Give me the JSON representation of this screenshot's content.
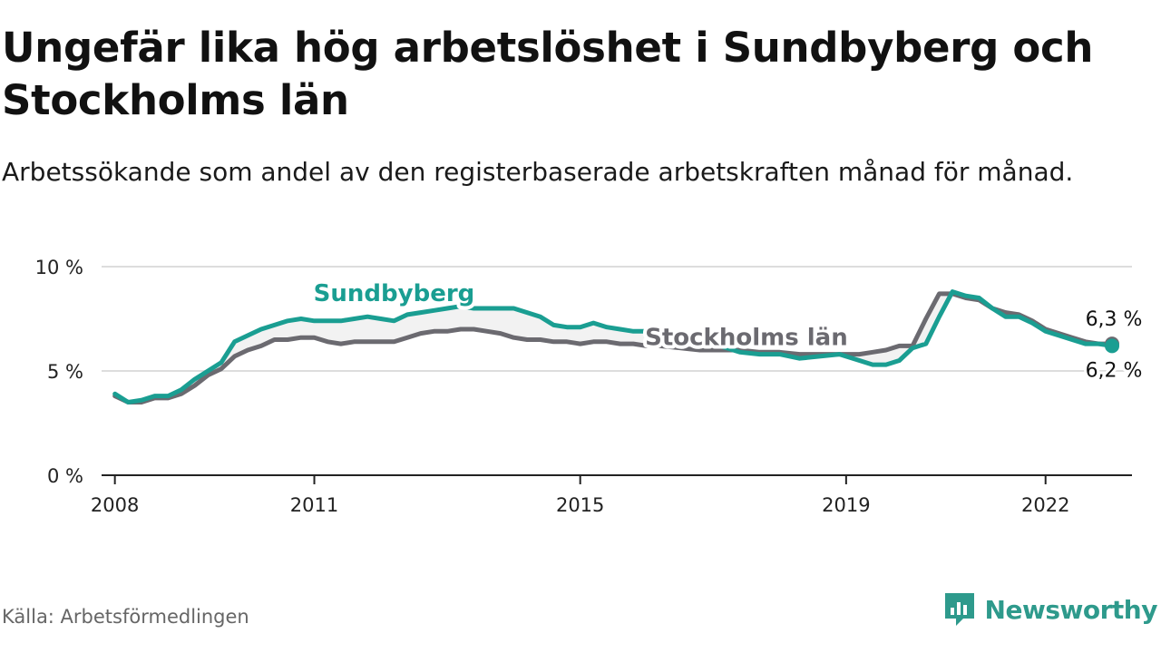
{
  "title": "Ungefär lika hög arbetslöshet i Sundbyberg och Stockholms län",
  "subtitle": "Arbetssökande som andel av den registerbaserade arbetskraften månad för månad.",
  "source": "Källa: Arbetsförmedlingen",
  "brand": {
    "name": "Newsworthy",
    "icon": "newsworthy-logo-icon"
  },
  "colors": {
    "sundbyberg": "#1a9e92",
    "stockholm": "#6b6a70",
    "area": "#f2f2f2",
    "grid": "#dddddd",
    "axis": "#222222",
    "brand": "#2e9a8c"
  },
  "chart_data": {
    "type": "line",
    "ylim": [
      0,
      10
    ],
    "yticks": [
      {
        "value": 0,
        "label": "0 %"
      },
      {
        "value": 5,
        "label": "5 %"
      },
      {
        "value": 10,
        "label": "10 %"
      }
    ],
    "xlim": [
      2007.8,
      2023.3
    ],
    "xticks": [
      {
        "value": 2008,
        "label": "2008"
      },
      {
        "value": 2011,
        "label": "2011"
      },
      {
        "value": 2015,
        "label": "2015"
      },
      {
        "value": 2019,
        "label": "2019"
      },
      {
        "value": 2022,
        "label": "2022"
      }
    ],
    "series": [
      {
        "name": "Stockholms län",
        "key": "stockholm",
        "label": "Stockholms län",
        "end_label": "6,3 %",
        "x": [
          2008.0,
          2008.2,
          2008.4,
          2008.6,
          2008.8,
          2009.0,
          2009.2,
          2009.4,
          2009.6,
          2009.8,
          2010.0,
          2010.2,
          2010.4,
          2010.6,
          2010.8,
          2011.0,
          2011.2,
          2011.4,
          2011.6,
          2011.8,
          2012.0,
          2012.2,
          2012.4,
          2012.6,
          2012.8,
          2013.0,
          2013.2,
          2013.4,
          2013.6,
          2013.8,
          2014.0,
          2014.2,
          2014.4,
          2014.6,
          2014.8,
          2015.0,
          2015.2,
          2015.4,
          2015.6,
          2015.8,
          2016.0,
          2016.2,
          2016.5,
          2016.8,
          2017.1,
          2017.4,
          2017.7,
          2018.0,
          2018.3,
          2018.6,
          2018.9,
          2019.2,
          2019.4,
          2019.6,
          2019.8,
          2020.0,
          2020.2,
          2020.4,
          2020.6,
          2020.8,
          2021.0,
          2021.2,
          2021.4,
          2021.6,
          2021.8,
          2022.0,
          2022.2,
          2022.4,
          2022.6,
          2022.8,
          2023.0
        ],
        "values": [
          3.8,
          3.5,
          3.5,
          3.7,
          3.7,
          3.9,
          4.3,
          4.8,
          5.1,
          5.7,
          6.0,
          6.2,
          6.5,
          6.5,
          6.6,
          6.6,
          6.4,
          6.3,
          6.4,
          6.4,
          6.4,
          6.4,
          6.6,
          6.8,
          6.9,
          6.9,
          7.0,
          7.0,
          6.9,
          6.8,
          6.6,
          6.5,
          6.5,
          6.4,
          6.4,
          6.3,
          6.4,
          6.4,
          6.3,
          6.3,
          6.2,
          6.2,
          6.1,
          6.0,
          6.0,
          6.0,
          5.9,
          5.9,
          5.8,
          5.8,
          5.8,
          5.8,
          5.9,
          6.0,
          6.2,
          6.2,
          7.5,
          8.7,
          8.7,
          8.5,
          8.4,
          8.0,
          7.8,
          7.7,
          7.4,
          7.0,
          6.8,
          6.6,
          6.4,
          6.3,
          6.3
        ]
      },
      {
        "name": "Sundbyberg",
        "key": "sundbyberg",
        "label": "Sundbyberg",
        "end_label": "6,2 %",
        "x": [
          2008.0,
          2008.2,
          2008.4,
          2008.6,
          2008.8,
          2009.0,
          2009.2,
          2009.4,
          2009.6,
          2009.8,
          2010.0,
          2010.2,
          2010.4,
          2010.6,
          2010.8,
          2011.0,
          2011.2,
          2011.4,
          2011.6,
          2011.8,
          2012.0,
          2012.2,
          2012.4,
          2012.6,
          2012.8,
          2013.0,
          2013.2,
          2013.4,
          2013.6,
          2013.8,
          2014.0,
          2014.2,
          2014.4,
          2014.6,
          2014.8,
          2015.0,
          2015.2,
          2015.4,
          2015.6,
          2015.8,
          2016.0,
          2016.2,
          2016.5,
          2016.8,
          2017.1,
          2017.4,
          2017.7,
          2018.0,
          2018.3,
          2018.6,
          2018.9,
          2019.2,
          2019.4,
          2019.6,
          2019.8,
          2020.0,
          2020.2,
          2020.4,
          2020.6,
          2020.8,
          2021.0,
          2021.2,
          2021.4,
          2021.6,
          2021.8,
          2022.0,
          2022.2,
          2022.4,
          2022.6,
          2022.8,
          2023.0
        ],
        "values": [
          3.9,
          3.5,
          3.6,
          3.8,
          3.8,
          4.1,
          4.6,
          5.0,
          5.4,
          6.4,
          6.7,
          7.0,
          7.2,
          7.4,
          7.5,
          7.4,
          7.4,
          7.4,
          7.5,
          7.6,
          7.5,
          7.4,
          7.7,
          7.8,
          7.9,
          8.0,
          8.1,
          8.0,
          8.0,
          8.0,
          8.0,
          7.8,
          7.6,
          7.2,
          7.1,
          7.1,
          7.3,
          7.1,
          7.0,
          6.9,
          6.9,
          6.8,
          6.7,
          6.5,
          6.2,
          5.9,
          5.8,
          5.8,
          5.6,
          5.7,
          5.8,
          5.5,
          5.3,
          5.3,
          5.5,
          6.1,
          6.3,
          7.6,
          8.8,
          8.6,
          8.5,
          8.0,
          7.6,
          7.6,
          7.3,
          6.9,
          6.7,
          6.5,
          6.3,
          6.3,
          6.2
        ]
      }
    ]
  }
}
